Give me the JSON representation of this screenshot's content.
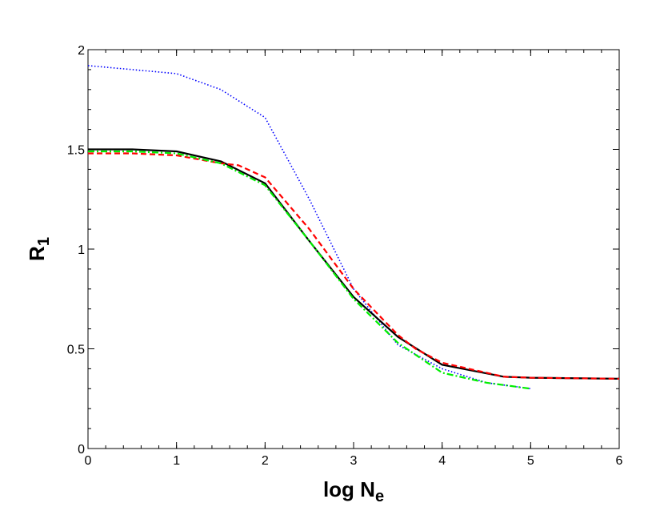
{
  "chart_data": {
    "type": "line",
    "xlabel": "log N",
    "xlabel_sub": "e",
    "ylabel": "R",
    "ylabel_sub": "1",
    "xlim": [
      0,
      6
    ],
    "ylim": [
      0,
      2
    ],
    "xticks": [
      0,
      1,
      2,
      3,
      4,
      5,
      6
    ],
    "xtick_labels": [
      "0",
      "1",
      "2",
      "3",
      "4",
      "5",
      "6"
    ],
    "yticks": [
      0,
      0.5,
      1,
      1.5,
      2
    ],
    "ytick_labels": [
      "0",
      "0.5",
      "1",
      "1.5",
      "2"
    ],
    "grid": false,
    "series": [
      {
        "color": "#0000ff",
        "style": "dotted",
        "x": [
          0,
          0.5,
          1,
          1.5,
          2,
          2.5,
          3,
          3.5,
          4,
          4.5,
          5
        ],
        "y": [
          1.92,
          1.9,
          1.88,
          1.8,
          1.66,
          1.25,
          0.8,
          0.52,
          0.4,
          0.33,
          0.3
        ]
      },
      {
        "color": "#000000",
        "style": "solid",
        "x": [
          0,
          0.5,
          1,
          1.5,
          2,
          2.5,
          3,
          3.5,
          4,
          4.7,
          5,
          6
        ],
        "y": [
          1.5,
          1.5,
          1.49,
          1.44,
          1.33,
          1.04,
          0.76,
          0.56,
          0.42,
          0.36,
          0.355,
          0.35
        ]
      },
      {
        "color": "#ff0000",
        "style": "dashed",
        "x": [
          0,
          0.5,
          1,
          1.5,
          1.7,
          2,
          2.5,
          3,
          3.5,
          3.7,
          4,
          4.7,
          5,
          6
        ],
        "y": [
          1.48,
          1.48,
          1.47,
          1.43,
          1.42,
          1.36,
          1.1,
          0.8,
          0.57,
          0.5,
          0.43,
          0.36,
          0.355,
          0.35
        ]
      },
      {
        "color": "#00ee00",
        "style": "dashdot",
        "x": [
          0,
          0.5,
          1,
          1.5,
          2,
          2.5,
          3,
          3.5,
          4,
          4.5,
          5
        ],
        "y": [
          1.49,
          1.49,
          1.48,
          1.43,
          1.32,
          1.04,
          0.75,
          0.53,
          0.38,
          0.33,
          0.3
        ]
      }
    ]
  }
}
